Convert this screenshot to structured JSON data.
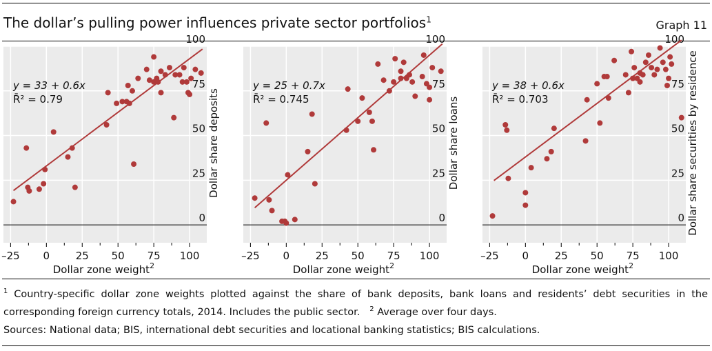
{
  "header": {
    "title": "The dollar’s pulling power influences private sector portfolios",
    "title_note": "1",
    "graph_label": "Graph 11"
  },
  "chart_data": [
    {
      "type": "scatter",
      "ylabel": "Dollar share deposits",
      "xlabel": "Dollar zone weight",
      "xlabel_note": "2",
      "xlim": [
        -30,
        112
      ],
      "ylim": [
        -10,
        100
      ],
      "x_ticks": [
        -25,
        0,
        25,
        50,
        75,
        100
      ],
      "x_tick_labels": [
        "–25",
        "0",
        "25",
        "50",
        "75",
        "100"
      ],
      "y_ticks": [
        0,
        25,
        50,
        75,
        100
      ],
      "equation": {
        "line1": "y = 33 + 0.6x",
        "r2_label": "R̄² = 0.79"
      },
      "regression": {
        "intercept": 33,
        "slope": 0.6,
        "x_range": [
          -23,
          109
        ]
      },
      "points": [
        [
          -23,
          13
        ],
        [
          -14,
          43
        ],
        [
          -13,
          21
        ],
        [
          -12,
          19
        ],
        [
          -5,
          20
        ],
        [
          -2,
          23
        ],
        [
          -1,
          31
        ],
        [
          5,
          52
        ],
        [
          15,
          38
        ],
        [
          18,
          43
        ],
        [
          20,
          21
        ],
        [
          42,
          56
        ],
        [
          43,
          74
        ],
        [
          49,
          68
        ],
        [
          53,
          69
        ],
        [
          56,
          69
        ],
        [
          57,
          78
        ],
        [
          58,
          68
        ],
        [
          60,
          75
        ],
        [
          61,
          34
        ],
        [
          64,
          82
        ],
        [
          70,
          87
        ],
        [
          72,
          81
        ],
        [
          75,
          80
        ],
        [
          75,
          94
        ],
        [
          77,
          82
        ],
        [
          78,
          80
        ],
        [
          80,
          86
        ],
        [
          80,
          74
        ],
        [
          83,
          84
        ],
        [
          86,
          88
        ],
        [
          89,
          60
        ],
        [
          90,
          84
        ],
        [
          93,
          84
        ],
        [
          95,
          80
        ],
        [
          96,
          88
        ],
        [
          98,
          80
        ],
        [
          99,
          74
        ],
        [
          100,
          73
        ],
        [
          101,
          82
        ],
        [
          104,
          87
        ],
        [
          108,
          85
        ]
      ]
    },
    {
      "type": "scatter",
      "ylabel": "Dollar share loans",
      "xlabel": "Dollar zone weight",
      "xlabel_note": "2",
      "xlim": [
        -30,
        112
      ],
      "ylim": [
        -10,
        100
      ],
      "x_ticks": [
        -25,
        0,
        25,
        50,
        75,
        100
      ],
      "x_tick_labels": [
        "–25",
        "0",
        "25",
        "50",
        "75",
        "100"
      ],
      "y_ticks": [
        0,
        25,
        50,
        75,
        100
      ],
      "equation": {
        "line1": "y = 25 + 0.7x",
        "r2_label": "R̄² = 0.745"
      },
      "regression": {
        "intercept": 25,
        "slope": 0.7,
        "x_range": [
          -22,
          109
        ]
      },
      "points": [
        [
          -22,
          15
        ],
        [
          -14,
          57
        ],
        [
          -12,
          14
        ],
        [
          -10,
          8
        ],
        [
          -3,
          2
        ],
        [
          -1,
          2
        ],
        [
          0,
          1
        ],
        [
          1,
          28
        ],
        [
          6,
          3
        ],
        [
          15,
          41
        ],
        [
          18,
          62
        ],
        [
          20,
          23
        ],
        [
          42,
          53
        ],
        [
          43,
          76
        ],
        [
          50,
          58
        ],
        [
          53,
          71
        ],
        [
          58,
          63
        ],
        [
          60,
          58
        ],
        [
          61,
          42
        ],
        [
          64,
          90
        ],
        [
          68,
          81
        ],
        [
          72,
          75
        ],
        [
          75,
          80
        ],
        [
          76,
          93
        ],
        [
          80,
          82
        ],
        [
          80,
          86
        ],
        [
          82,
          91
        ],
        [
          84,
          82
        ],
        [
          86,
          84
        ],
        [
          88,
          80
        ],
        [
          90,
          72
        ],
        [
          95,
          83
        ],
        [
          96,
          95
        ],
        [
          98,
          79
        ],
        [
          100,
          77
        ],
        [
          100,
          70
        ],
        [
          102,
          88
        ],
        [
          108,
          86
        ]
      ]
    },
    {
      "type": "scatter",
      "ylabel": "Dollar share securities by residence",
      "xlabel": "Dollar zone weight",
      "xlabel_note": "2",
      "xlim": [
        -30,
        112
      ],
      "ylim": [
        -10,
        100
      ],
      "x_ticks": [
        -25,
        0,
        25,
        50,
        75,
        100
      ],
      "x_tick_labels": [
        "–25",
        "0",
        "25",
        "50",
        "75",
        "100"
      ],
      "y_ticks": [
        0,
        25,
        50,
        75,
        100
      ],
      "equation": {
        "line1": "y = 38 + 0.6x",
        "r2_label": "R̄² = 0.703"
      },
      "regression": {
        "intercept": 38,
        "slope": 0.6,
        "x_range": [
          -22,
          109
        ]
      },
      "points": [
        [
          -23,
          5
        ],
        [
          -14,
          56
        ],
        [
          -13,
          53
        ],
        [
          -12,
          26
        ],
        [
          0,
          18
        ],
        [
          0,
          11
        ],
        [
          4,
          32
        ],
        [
          15,
          37
        ],
        [
          18,
          41
        ],
        [
          20,
          54
        ],
        [
          42,
          47
        ],
        [
          43,
          70
        ],
        [
          50,
          79
        ],
        [
          52,
          57
        ],
        [
          55,
          83
        ],
        [
          57,
          83
        ],
        [
          58,
          71
        ],
        [
          62,
          92
        ],
        [
          70,
          84
        ],
        [
          72,
          74
        ],
        [
          74,
          97
        ],
        [
          75,
          82
        ],
        [
          76,
          88
        ],
        [
          78,
          82
        ],
        [
          80,
          80
        ],
        [
          80,
          85
        ],
        [
          82,
          84
        ],
        [
          84,
          91
        ],
        [
          86,
          95
        ],
        [
          88,
          88
        ],
        [
          90,
          84
        ],
        [
          92,
          87
        ],
        [
          94,
          99
        ],
        [
          96,
          91
        ],
        [
          98,
          87
        ],
        [
          99,
          78
        ],
        [
          100,
          82
        ],
        [
          101,
          94
        ],
        [
          102,
          90
        ],
        [
          109,
          60
        ]
      ]
    }
  ],
  "footnotes": {
    "n1_marker": "1",
    "n1_text": " Country-specific dollar zone weights plotted against the share of bank deposits, bank loans and residents’ debt securities in the corresponding foreign currency totals, 2014. Includes the public sector.",
    "n2_marker": "2",
    "n2_text": " Average over four days."
  },
  "sources": "Sources: National data; BIS, international debt securities and locational banking statistics; BIS calculations.",
  "colors": {
    "marker": "#b03a3a",
    "regression_line": "#b03a3a",
    "plot_background": "#ebebeb",
    "grid": "#ffffff",
    "text": "#111111",
    "axis": "#000000"
  }
}
